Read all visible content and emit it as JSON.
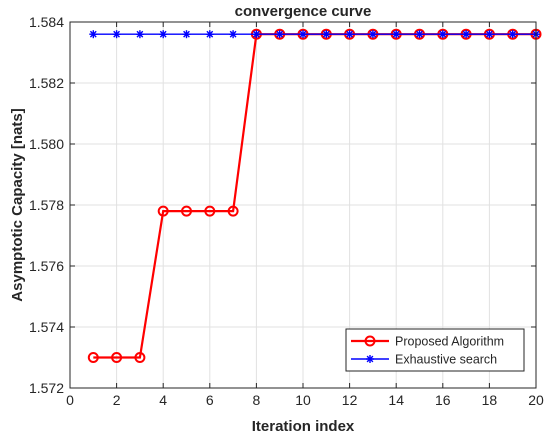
{
  "chart_data": {
    "type": "line",
    "title": "convergence curve",
    "xlabel": "Iteration index",
    "ylabel": "Asymptotic Capacity [nats]",
    "xlim": [
      0,
      20
    ],
    "ylim": [
      1.572,
      1.584
    ],
    "xticks": [
      0,
      2,
      4,
      6,
      8,
      10,
      12,
      14,
      16,
      18,
      20
    ],
    "yticks": [
      1.572,
      1.574,
      1.576,
      1.578,
      1.58,
      1.582,
      1.584
    ],
    "xtick_labels": [
      "0",
      "2",
      "4",
      "6",
      "8",
      "10",
      "12",
      "14",
      "16",
      "18",
      "20"
    ],
    "ytick_labels": [
      "1.572",
      "1.574",
      "1.576",
      "1.578",
      "1.580",
      "1.582",
      "1.584"
    ],
    "grid": true,
    "legend_position": "bottom-right",
    "x": [
      1,
      2,
      3,
      4,
      5,
      6,
      7,
      8,
      9,
      10,
      11,
      12,
      13,
      14,
      15,
      16,
      17,
      18,
      19,
      20
    ],
    "series": [
      {
        "name": "Proposed Algorithm",
        "color": "#ff0000",
        "marker": "circle",
        "values": [
          1.573,
          1.573,
          1.573,
          1.5778,
          1.5778,
          1.5778,
          1.5778,
          1.5836,
          1.5836,
          1.5836,
          1.5836,
          1.5836,
          1.5836,
          1.5836,
          1.5836,
          1.5836,
          1.5836,
          1.5836,
          1.5836,
          1.5836
        ]
      },
      {
        "name": "Exhaustive search",
        "color": "#0000ff",
        "marker": "asterisk",
        "values": [
          1.5836,
          1.5836,
          1.5836,
          1.5836,
          1.5836,
          1.5836,
          1.5836,
          1.5836,
          1.5836,
          1.5836,
          1.5836,
          1.5836,
          1.5836,
          1.5836,
          1.5836,
          1.5836,
          1.5836,
          1.5836,
          1.5836,
          1.5836
        ]
      }
    ]
  }
}
